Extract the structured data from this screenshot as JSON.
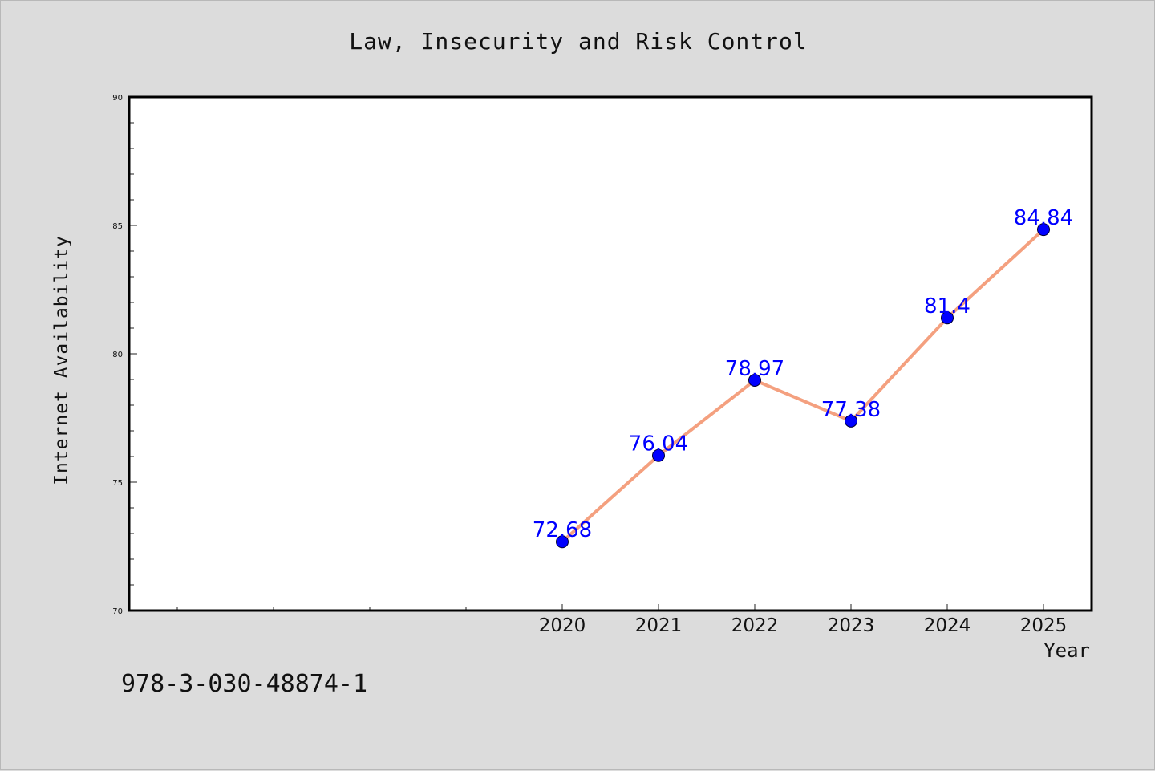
{
  "chart_data": {
    "type": "line",
    "title": "Law, Insecurity and Risk Control",
    "xlabel": "Year",
    "ylabel": "Internet Availability",
    "x": [
      2020,
      2021,
      2022,
      2023,
      2024,
      2025
    ],
    "values": [
      72.68,
      76.04,
      78.97,
      77.38,
      81.4,
      84.84
    ],
    "data_labels": [
      "72.68",
      "76.04",
      "78.97",
      "77.38",
      "81.4",
      "84.84"
    ],
    "xlim": [
      2015.5,
      2025.5
    ],
    "ylim": [
      70,
      90
    ],
    "yticks": [
      70,
      75,
      80,
      85,
      90
    ],
    "grid": false,
    "line_color": "#f4a07f",
    "marker_color": "#0000ff",
    "label_color": "#0000ff"
  },
  "footer": {
    "identifier": "978-3-030-48874-1"
  }
}
